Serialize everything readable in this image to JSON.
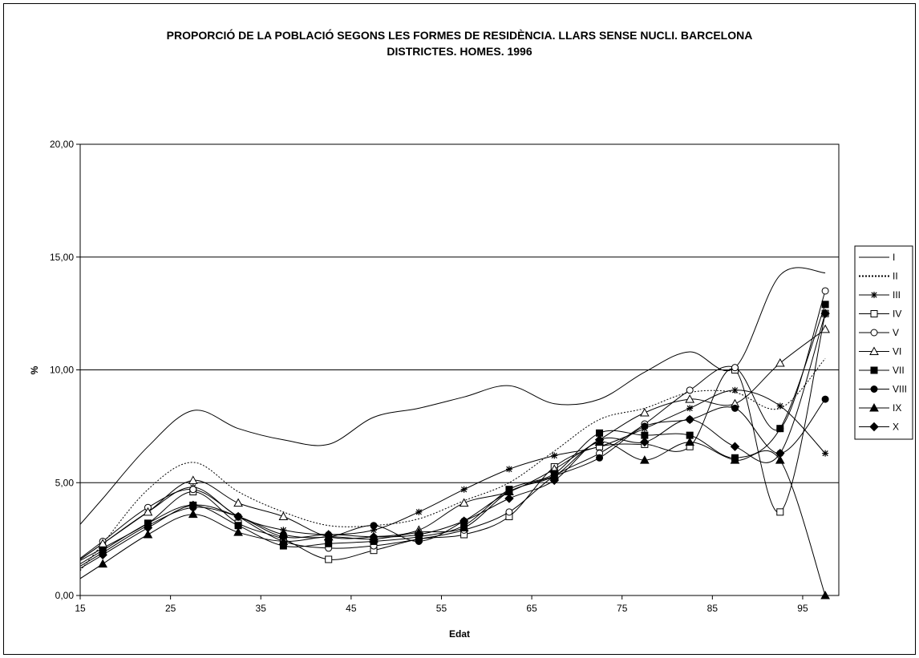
{
  "chart_data": {
    "type": "line",
    "title_line1": "PROPORCIÓ DE LA POBLACIÓ SEGONS LES FORMES DE RESIDÈNCIA. LLARS SENSE NUCLI. BARCELONA",
    "title_line2": "DISTRICTES. HOMES. 1996",
    "xlabel": "Edat",
    "ylabel": "%",
    "xlim": [
      15,
      99
    ],
    "ylim": [
      0,
      20
    ],
    "xticks": [
      "15",
      "25",
      "35",
      "45",
      "55",
      "65",
      "75",
      "85",
      "95"
    ],
    "yticks": [
      "0,00",
      "5,00",
      "10,00",
      "15,00",
      "20,00"
    ],
    "grid": "horizontal",
    "legend_position": "right",
    "x": [
      17.5,
      22.5,
      27.5,
      32.5,
      37.5,
      42.5,
      47.5,
      52.5,
      57.5,
      62.5,
      67.5,
      72.5,
      77.5,
      82.5,
      87.5,
      92.5,
      97.5
    ],
    "series": [
      {
        "name": "I",
        "marker": "none",
        "dash": "solid",
        "values": [
          4.3,
          6.6,
          8.2,
          7.4,
          6.9,
          6.7,
          7.9,
          8.3,
          8.8,
          9.3,
          8.5,
          8.7,
          9.9,
          10.8,
          10.1,
          14.2,
          14.3
        ]
      },
      {
        "name": "II",
        "marker": "none",
        "dash": "dotted",
        "values": [
          2.3,
          4.7,
          5.9,
          4.6,
          3.7,
          3.1,
          3.1,
          3.4,
          4.2,
          5.0,
          6.4,
          7.8,
          8.3,
          9.0,
          9.0,
          8.3,
          10.5
        ]
      },
      {
        "name": "III",
        "marker": "star",
        "dash": "solid",
        "values": [
          2.3,
          3.7,
          4.8,
          3.5,
          2.9,
          2.7,
          2.9,
          3.7,
          4.7,
          5.6,
          6.2,
          6.6,
          7.4,
          8.3,
          9.1,
          8.4,
          6.3
        ]
      },
      {
        "name": "IV",
        "marker": "square-open",
        "dash": "solid",
        "values": [
          2.1,
          3.2,
          4.6,
          3.2,
          2.5,
          1.6,
          2.0,
          2.5,
          2.7,
          3.5,
          5.7,
          6.6,
          6.7,
          6.6,
          10.0,
          3.7,
          12.5
        ]
      },
      {
        "name": "V",
        "marker": "circle-open",
        "dash": "solid",
        "values": [
          2.4,
          3.9,
          4.7,
          3.5,
          2.4,
          2.1,
          2.2,
          2.5,
          2.9,
          3.7,
          5.3,
          6.3,
          7.6,
          9.1,
          10.1,
          7.4,
          13.5
        ]
      },
      {
        "name": "VI",
        "marker": "triangle-open",
        "dash": "solid",
        "values": [
          2.3,
          3.7,
          5.1,
          4.1,
          3.5,
          2.6,
          2.6,
          2.9,
          4.1,
          4.6,
          5.6,
          6.9,
          8.1,
          8.7,
          8.5,
          10.3,
          11.8
        ]
      },
      {
        "name": "VII",
        "marker": "square",
        "dash": "solid",
        "values": [
          2.0,
          3.2,
          4.0,
          3.1,
          2.2,
          2.3,
          2.4,
          2.6,
          3.1,
          4.7,
          5.4,
          7.2,
          7.1,
          7.1,
          6.1,
          7.4,
          12.9
        ]
      },
      {
        "name": "VIII",
        "marker": "circle",
        "dash": "solid",
        "values": [
          1.9,
          3.1,
          3.9,
          3.5,
          2.7,
          2.6,
          3.1,
          2.4,
          3.3,
          4.6,
          5.3,
          6.1,
          7.5,
          7.8,
          8.3,
          6.3,
          8.7
        ]
      },
      {
        "name": "IX",
        "marker": "triangle",
        "dash": "solid",
        "values": [
          1.4,
          2.7,
          3.6,
          2.8,
          2.4,
          2.6,
          2.5,
          2.8,
          3.0,
          4.6,
          5.3,
          6.8,
          6.0,
          6.8,
          6.0,
          6.0,
          0.0
        ]
      },
      {
        "name": "X",
        "marker": "diamond",
        "dash": "solid",
        "values": [
          1.8,
          3.0,
          4.0,
          3.5,
          2.6,
          2.7,
          2.6,
          2.7,
          3.3,
          4.3,
          5.1,
          6.9,
          6.8,
          7.8,
          6.6,
          6.3,
          12.5
        ]
      }
    ]
  }
}
